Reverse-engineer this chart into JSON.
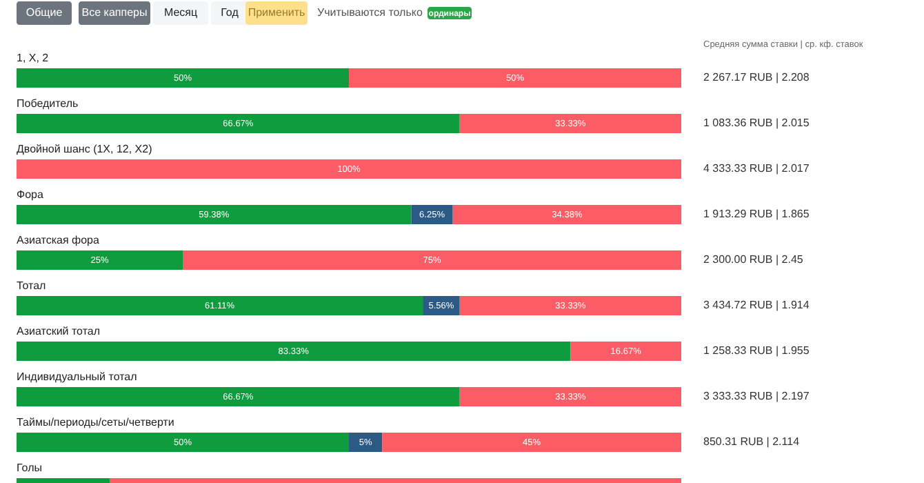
{
  "chart_data": {
    "type": "bar",
    "orientation": "horizontal",
    "stacked": true,
    "categories": [
      "1, X, 2",
      "Победитель",
      "Двойной шанс (1X, 12, X2)",
      "Фора",
      "Азиатская фора",
      "Тотал",
      "Азиатский тотал",
      "Индивидуальный тотал",
      "Таймы/периоды/сеты/четверти",
      "Голы"
    ],
    "series": [
      {
        "color": "#0e9c3e",
        "values": [
          50,
          66.67,
          null,
          59.38,
          25,
          61.11,
          83.33,
          66.67,
          50,
          14
        ],
        "value_labels": [
          "50%",
          "66.67%",
          null,
          "59.38%",
          "25%",
          "61.11%",
          "83.33%",
          "66.67%",
          "50%",
          null
        ]
      },
      {
        "color": "#2b5a84",
        "values": [
          null,
          null,
          null,
          6.25,
          null,
          5.56,
          null,
          null,
          5,
          null
        ],
        "value_labels": [
          null,
          null,
          null,
          "6.25%",
          null,
          "5.56%",
          null,
          null,
          "5%",
          null
        ]
      },
      {
        "color": "#fc5c65",
        "values": [
          50,
          33.33,
          100,
          34.38,
          75,
          33.33,
          16.67,
          33.33,
          45,
          86
        ],
        "value_labels": [
          "50%",
          "33.33%",
          "100%",
          "34.38%",
          "75%",
          "33.33%",
          "16.67%",
          "33.33%",
          "45%",
          null
        ]
      }
    ],
    "xlim": [
      0,
      100
    ],
    "tick_labels": false,
    "grid": false,
    "legend": false,
    "annotations": [
      "Общие",
      "Все капперы",
      "Месяц",
      "Год",
      "Применить",
      "Учитываются только",
      "ординары",
      "Средняя сумма ставки | ср. кф. ставок",
      "2 267.17 RUB | 2.208",
      "1 083.36 RUB | 2.015",
      "4 333.33 RUB | 2.017",
      "1 913.29 RUB | 1.865",
      "2 300.00 RUB | 2.45",
      "3 434.72 RUB | 1.914",
      "1 258.33 RUB | 1.955",
      "3 333.33 RUB | 2.197",
      "850.31 RUB | 2.114"
    ]
  }
}
